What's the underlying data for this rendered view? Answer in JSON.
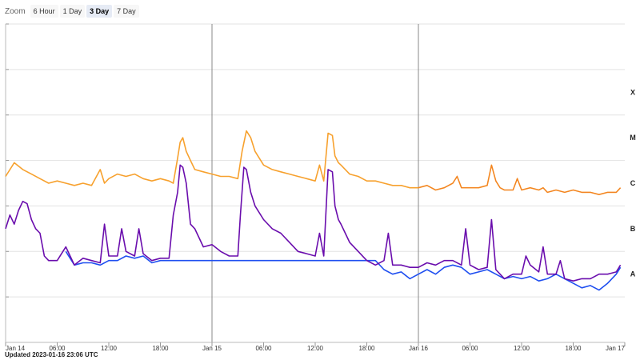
{
  "zoom": {
    "label": "Zoom",
    "buttons": [
      "6 Hour",
      "1 Day",
      "3 Day",
      "7 Day"
    ],
    "active": "3 Day"
  },
  "footer": {
    "updated": "Updated 2023-01-16 23:06 UTC"
  },
  "colors": {
    "long_channel": "#f7a12e",
    "long_channel_recent": "#f06a1a",
    "short_primary": "#6a0dad",
    "short_secondary": "#1f4ff0",
    "grid": "#e3e3e3",
    "day_line": "#888888"
  },
  "chart_data": {
    "type": "line",
    "x_unit": "hours since Jan 14 00:00 UTC",
    "xlim": [
      0,
      72
    ],
    "x_ticks": [
      {
        "x": 0,
        "label": "Jan 14"
      },
      {
        "x": 6,
        "label": "06:00"
      },
      {
        "x": 12,
        "label": "12:00"
      },
      {
        "x": 18,
        "label": "18:00"
      },
      {
        "x": 24,
        "label": "Jan 15"
      },
      {
        "x": 30,
        "label": "06:00"
      },
      {
        "x": 36,
        "label": "12:00"
      },
      {
        "x": 42,
        "label": "18:00"
      },
      {
        "x": 48,
        "label": "Jan 16"
      },
      {
        "x": 54,
        "label": "06:00"
      },
      {
        "x": 60,
        "label": "12:00"
      },
      {
        "x": 66,
        "label": "18:00"
      },
      {
        "x": 72,
        "label": "Jan 17"
      }
    ],
    "day_boundaries": [
      24,
      48
    ],
    "y_scale": "log",
    "ylim": [
      -9,
      -2
    ],
    "flare_classes": [
      {
        "label": "A",
        "y": -7.5
      },
      {
        "label": "B",
        "y": -6.5
      },
      {
        "label": "C",
        "y": -5.5
      },
      {
        "label": "M",
        "y": -4.5
      },
      {
        "label": "X",
        "y": -3.5
      }
    ],
    "series": [
      {
        "id": "long",
        "x": [
          0,
          1,
          2,
          3,
          4,
          5,
          6,
          7,
          8,
          9,
          10,
          11,
          11.5,
          12,
          13,
          14,
          15,
          16,
          17,
          18,
          19,
          19.5,
          20,
          20.3,
          20.6,
          21,
          21.5,
          22,
          23,
          24,
          25,
          26,
          27,
          27.5,
          28,
          28.5,
          29,
          30,
          31,
          32,
          33,
          34,
          35,
          36,
          36.5,
          37,
          37.5,
          38,
          38.3,
          38.7,
          39,
          39.5,
          40,
          41,
          42,
          43,
          44,
          45,
          46,
          47,
          48,
          49,
          50,
          51,
          52,
          52.5,
          53,
          54,
          55,
          56,
          56.5,
          57,
          57.5,
          58,
          59,
          59.5,
          60,
          61,
          62,
          62.5,
          63,
          64,
          65,
          66,
          67,
          68,
          69,
          70,
          71,
          71.5
        ],
        "values": [
          -5.35,
          -5.05,
          -5.2,
          -5.3,
          -5.4,
          -5.5,
          -5.45,
          -5.5,
          -5.55,
          -5.5,
          -5.55,
          -5.2,
          -5.5,
          -5.4,
          -5.3,
          -5.35,
          -5.3,
          -5.4,
          -5.45,
          -5.4,
          -5.45,
          -5.5,
          -4.95,
          -4.6,
          -4.5,
          -4.8,
          -5.0,
          -5.2,
          -5.25,
          -5.3,
          -5.35,
          -5.35,
          -5.4,
          -4.8,
          -4.35,
          -4.5,
          -4.8,
          -5.1,
          -5.2,
          -5.25,
          -5.3,
          -5.35,
          -5.4,
          -5.45,
          -5.1,
          -5.45,
          -4.4,
          -4.45,
          -4.9,
          -5.05,
          -5.1,
          -5.2,
          -5.3,
          -5.35,
          -5.45,
          -5.45,
          -5.5,
          -5.55,
          -5.55,
          -5.6,
          -5.6,
          -5.55,
          -5.65,
          -5.6,
          -5.5,
          -5.35,
          -5.6,
          -5.6,
          -5.6,
          -5.55,
          -5.1,
          -5.45,
          -5.6,
          -5.65,
          -5.65,
          -5.4,
          -5.65,
          -5.6,
          -5.65,
          -5.6,
          -5.7,
          -5.65,
          -5.7,
          -5.65,
          -5.7,
          -5.7,
          -5.75,
          -5.7,
          -5.7,
          -5.6
        ]
      },
      {
        "id": "short",
        "x": [
          0,
          0.5,
          1,
          1.5,
          2,
          2.5,
          3,
          3.5,
          4,
          4.5,
          5,
          6,
          7,
          8,
          9,
          10,
          11,
          11.5,
          12,
          13,
          13.5,
          14,
          15,
          15.5,
          16,
          17,
          18,
          19,
          19.5,
          20,
          20.3,
          20.6,
          21,
          21.5,
          22,
          23,
          24,
          25,
          26,
          27,
          27.3,
          27.7,
          28,
          28.5,
          29,
          30,
          31,
          32,
          33,
          34,
          35,
          36,
          36.5,
          37,
          37.5,
          38,
          38.3,
          38.7,
          39,
          39.5,
          40,
          41,
          42,
          43,
          44,
          44.5,
          45,
          46,
          47,
          48,
          49,
          50,
          51,
          52,
          53,
          53.5,
          54,
          55,
          56,
          56.5,
          57,
          57.5,
          58,
          59,
          60,
          60.5,
          61,
          62,
          62.5,
          63,
          64,
          64.5,
          65,
          66,
          67,
          68,
          69,
          70,
          71,
          71.5
        ],
        "values": [
          -6.5,
          -6.2,
          -6.4,
          -6.1,
          -5.9,
          -5.95,
          -6.3,
          -6.5,
          -6.6,
          -7.1,
          -7.2,
          -7.2,
          -6.9,
          -7.3,
          -7.15,
          -7.2,
          -7.25,
          -6.4,
          -7.1,
          -7.1,
          -6.5,
          -7.0,
          -7.1,
          -6.5,
          -7.05,
          -7.2,
          -7.15,
          -7.15,
          -6.2,
          -5.7,
          -5.1,
          -5.15,
          -5.5,
          -6.4,
          -6.5,
          -6.9,
          -6.85,
          -7.0,
          -7.1,
          -7.1,
          -6.2,
          -5.15,
          -5.2,
          -5.7,
          -6.0,
          -6.3,
          -6.5,
          -6.6,
          -6.8,
          -7.0,
          -7.05,
          -7.1,
          -6.6,
          -7.1,
          -5.2,
          -5.25,
          -6.0,
          -6.3,
          -6.4,
          -6.6,
          -6.8,
          -7.0,
          -7.2,
          -7.3,
          -7.2,
          -6.6,
          -7.3,
          -7.3,
          -7.35,
          -7.35,
          -7.25,
          -7.3,
          -7.2,
          -7.2,
          -7.3,
          -6.5,
          -7.3,
          -7.4,
          -7.35,
          -6.3,
          -7.4,
          -7.5,
          -7.6,
          -7.5,
          -7.5,
          -7.1,
          -7.3,
          -7.45,
          -6.9,
          -7.5,
          -7.5,
          -7.2,
          -7.6,
          -7.65,
          -7.6,
          -7.6,
          -7.5,
          -7.5,
          -7.45,
          -7.3
        ]
      },
      {
        "id": "short-secondary",
        "x": [
          7,
          8,
          9,
          10,
          11,
          12,
          13,
          14,
          15,
          16,
          17,
          18,
          19,
          43,
          44,
          45,
          46,
          47,
          48,
          49,
          50,
          51,
          52,
          53,
          54,
          55,
          56,
          57,
          58,
          59,
          60,
          61,
          62,
          63,
          64,
          65,
          66,
          67,
          68,
          69,
          70,
          71,
          71.5
        ],
        "values": [
          -7.0,
          -7.3,
          -7.25,
          -7.25,
          -7.3,
          -7.2,
          -7.2,
          -7.1,
          -7.15,
          -7.1,
          -7.25,
          -7.2,
          -7.2,
          -7.2,
          -7.4,
          -7.5,
          -7.45,
          -7.6,
          -7.5,
          -7.4,
          -7.5,
          -7.35,
          -7.3,
          -7.35,
          -7.5,
          -7.45,
          -7.4,
          -7.5,
          -7.6,
          -7.55,
          -7.6,
          -7.55,
          -7.65,
          -7.6,
          -7.5,
          -7.6,
          -7.7,
          -7.8,
          -7.75,
          -7.85,
          -7.7,
          -7.5,
          -7.35
        ]
      }
    ]
  }
}
